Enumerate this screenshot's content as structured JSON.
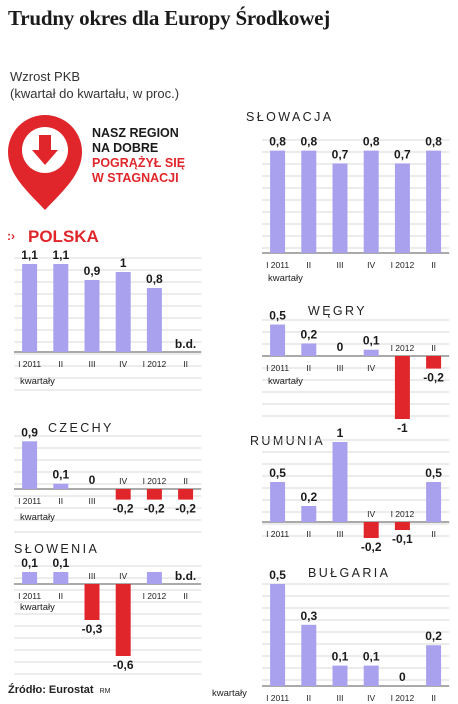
{
  "header": {
    "title": "Trudny okres dla Europy Środkowej",
    "subtitle_line1": "Wzrost PKB",
    "subtitle_line2": "(kwartał do kwartału, w proc.)"
  },
  "callout": {
    "line1": "NASZ REGION",
    "line2": "NA DOBRE",
    "line3": "POGRĄŻYŁ SIĘ",
    "line4": "W STAGNACJI"
  },
  "footer": {
    "source": "Źródło: Eurostat",
    "credit": "RM"
  },
  "colors": {
    "bar": "#a9a1ee",
    "neg": "#e0262b",
    "accent": "#e0262b",
    "grid": "#cccccc"
  },
  "chart_data": [
    {
      "type": "bar",
      "title": "POLSKA",
      "categories": [
        "I 2011",
        "II",
        "III",
        "IV",
        "I 2012",
        "II"
      ],
      "values": [
        1.1,
        1.1,
        0.9,
        1,
        0.8,
        null
      ],
      "labels": [
        "1,1",
        "1,1",
        "0,9",
        "1",
        "0,8",
        "b.d."
      ],
      "xlabel": "kwartały"
    },
    {
      "type": "bar",
      "title": "CZECHY",
      "categories": [
        "I 2011",
        "II",
        "III",
        "IV",
        "I 2012",
        "II"
      ],
      "values": [
        0.9,
        0.1,
        0,
        -0.2,
        -0.2,
        -0.2
      ],
      "labels": [
        "0,9",
        "0,1",
        "0",
        "-0,2",
        "-0,2",
        "-0,2"
      ],
      "xlabel": "kwartały"
    },
    {
      "type": "bar",
      "title": "SŁOWENIA",
      "categories": [
        "I 2011",
        "II",
        "III",
        "IV",
        "I 2012",
        "II"
      ],
      "values": [
        0.1,
        0.1,
        -0.3,
        -0.6,
        0.1,
        null
      ],
      "labels": [
        "0,1",
        "0,1",
        "-0,3",
        "-0,6",
        "",
        "b.d."
      ],
      "xlabel": "kwartały"
    },
    {
      "type": "bar",
      "title": "SŁOWACJA",
      "categories": [
        "I 2011",
        "II",
        "III",
        "IV",
        "I 2012",
        "II"
      ],
      "values": [
        0.8,
        0.8,
        0.7,
        0.8,
        0.7,
        0.8
      ],
      "labels": [
        "0,8",
        "0,8",
        "0,7",
        "0,8",
        "0,7",
        "0,8"
      ],
      "xlabel": "kwartały"
    },
    {
      "type": "bar",
      "title": "WĘGRY",
      "categories": [
        "I 2011",
        "II",
        "III",
        "IV",
        "I 2012",
        "II"
      ],
      "values": [
        0.5,
        0.2,
        0,
        0.1,
        -1,
        -0.2
      ],
      "labels": [
        "0,5",
        "0,2",
        "0",
        "0,1",
        "-1",
        "-0,2"
      ],
      "xlabel": "kwartały"
    },
    {
      "type": "bar",
      "title": "RUMUNIA",
      "categories": [
        "I 2011",
        "II",
        "III",
        "IV",
        "I 2012",
        "II"
      ],
      "values": [
        0.5,
        0.2,
        1,
        -0.2,
        -0.1,
        0.5
      ],
      "labels": [
        "0,5",
        "0,2",
        "1",
        "-0,2",
        "-0,1",
        "0,5"
      ],
      "xlabel": ""
    },
    {
      "type": "bar",
      "title": "BUŁGARIA",
      "categories": [
        "I 2011",
        "II",
        "III",
        "IV",
        "I 2012",
        "II"
      ],
      "values": [
        0.5,
        0.3,
        0.1,
        0.1,
        0,
        0.2
      ],
      "labels": [
        "0,5",
        "0,3",
        "0,1",
        "0,1",
        "0",
        "0,2"
      ],
      "xlabel": "kwartały"
    }
  ]
}
